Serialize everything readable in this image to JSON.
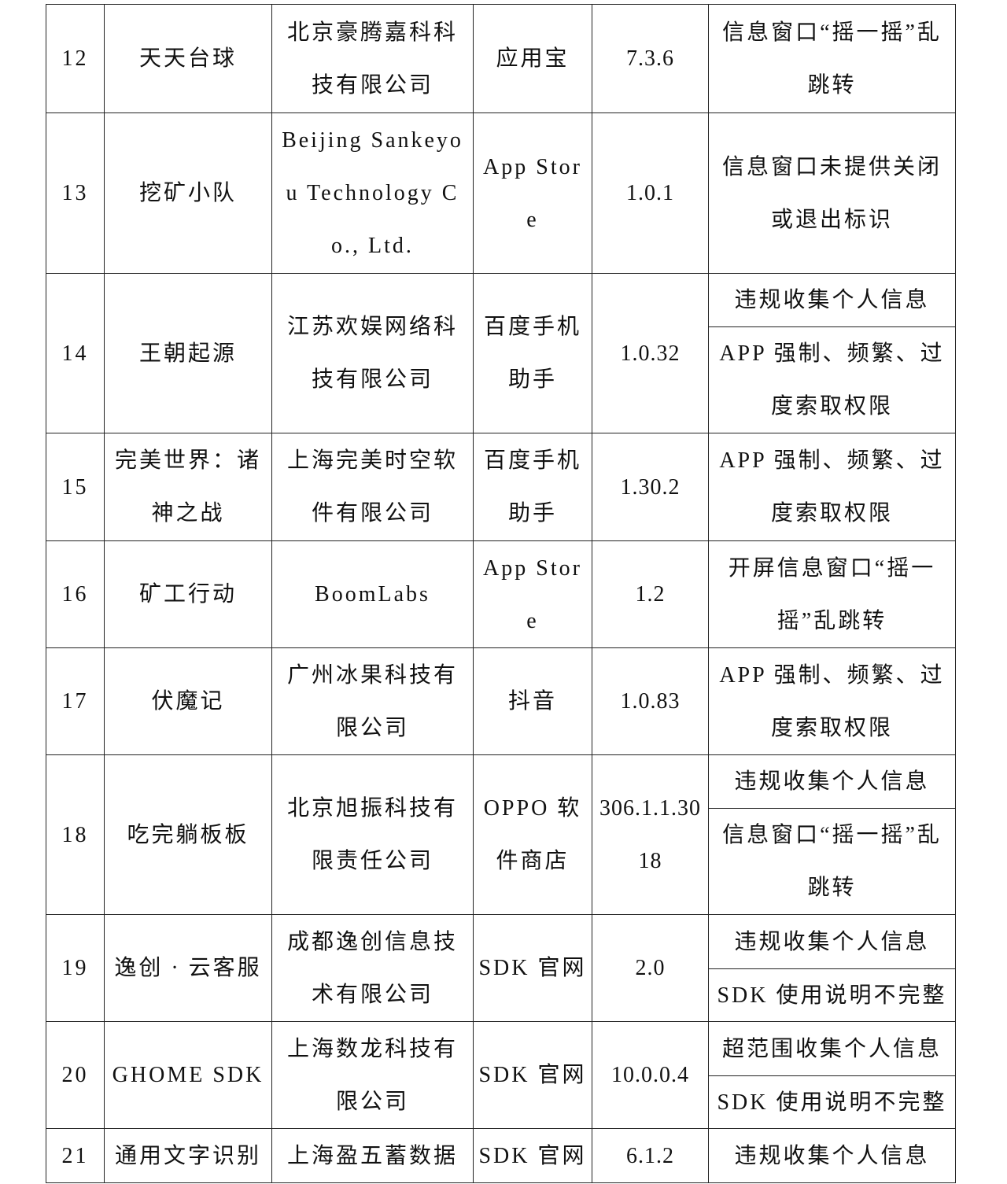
{
  "rows": [
    {
      "no": "12",
      "name": "天天台球",
      "company": "北京豪腾嘉科科技有限公司",
      "store": "应用宝",
      "version": "7.3.6",
      "issues": [
        "信息窗口“摇一摇”乱跳转"
      ]
    },
    {
      "no": "13",
      "name": "挖矿小队",
      "company": "Beijing Sankeyou Technology Co., Ltd.",
      "store": "App Store",
      "version": "1.0.1",
      "issues": [
        "信息窗口未提供关闭或退出标识"
      ]
    },
    {
      "no": "14",
      "name": "王朝起源",
      "company": "江苏欢娱网络科技有限公司",
      "store": "百度手机助手",
      "version": "1.0.32",
      "issues": [
        "违规收集个人信息",
        "APP 强制、频繁、过度索取权限"
      ]
    },
    {
      "no": "15",
      "name": "完美世界：诸神之战",
      "company": "上海完美时空软件有限公司",
      "store": "百度手机助手",
      "version": "1.30.2",
      "issues": [
        "APP 强制、频繁、过度索取权限"
      ]
    },
    {
      "no": "16",
      "name": "矿工行动",
      "company": "BoomLabs",
      "store": "App Store",
      "version": "1.2",
      "issues": [
        "开屏信息窗口“摇一摇”乱跳转"
      ]
    },
    {
      "no": "17",
      "name": "伏魔记",
      "company": "广州冰果科技有限公司",
      "store": "抖音",
      "version": "1.0.83",
      "issues": [
        "APP 强制、频繁、过度索取权限"
      ]
    },
    {
      "no": "18",
      "name": "吃完躺板板",
      "company": "北京旭振科技有限责任公司",
      "store": "OPPO 软件商店",
      "version": "306.1.1.3018",
      "issues": [
        "违规收集个人信息",
        "信息窗口“摇一摇”乱跳转"
      ]
    },
    {
      "no": "19",
      "name": "逸创 · 云客服",
      "company": "成都逸创信息技术有限公司",
      "store": "SDK 官网",
      "version": "2.0",
      "issues": [
        "违规收集个人信息",
        "SDK 使用说明不完整"
      ]
    },
    {
      "no": "20",
      "name": "GHOME SDK",
      "company": "上海数龙科技有限公司",
      "store": "SDK 官网",
      "version": "10.0.0.4",
      "issues": [
        "超范围收集个人信息",
        "SDK 使用说明不完整"
      ]
    },
    {
      "no": "21",
      "name": "通用文字识别",
      "company": "上海盈五蓄数据",
      "store": "SDK 官网",
      "version": "6.1.2",
      "issues": [
        "违规收集个人信息"
      ]
    }
  ]
}
